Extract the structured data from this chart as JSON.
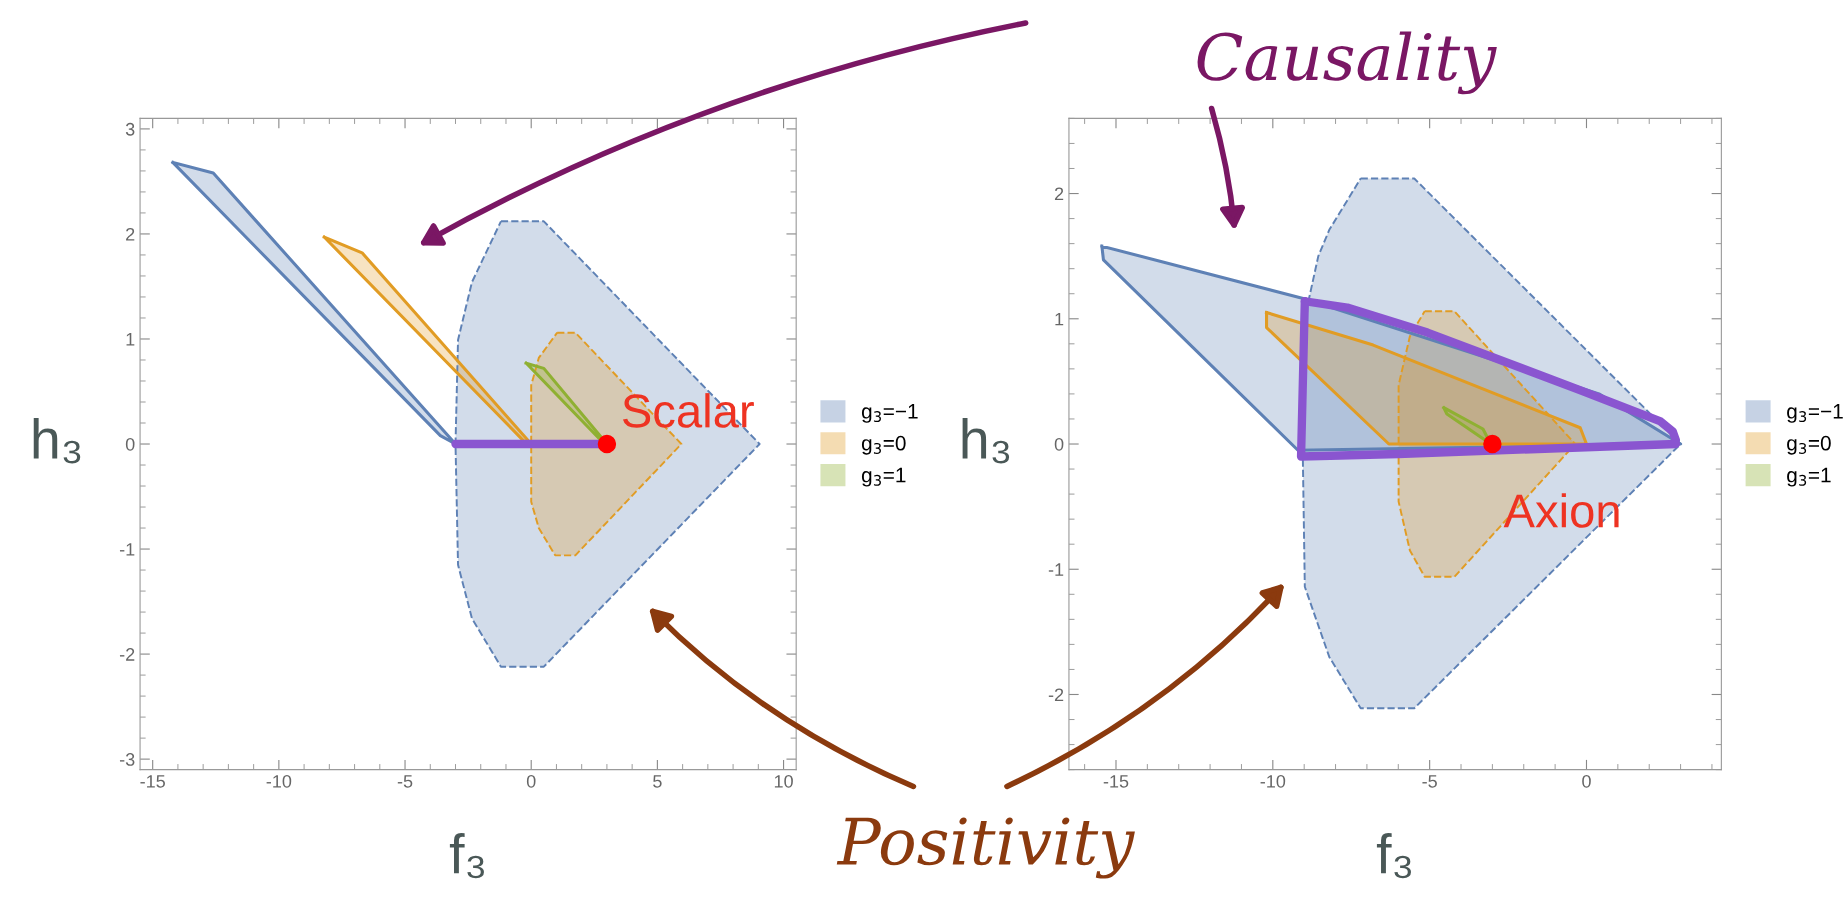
{
  "chart_data": [
    {
      "type": "area",
      "xlabel": "f₃",
      "ylabel": "h₃",
      "xlim": [
        -15.5,
        10.5
      ],
      "ylim": [
        -3.1,
        3.1
      ],
      "xticks": [
        -15,
        -10,
        -5,
        0,
        5,
        10
      ],
      "yticks": [
        -3,
        -2,
        -1,
        0,
        1,
        2,
        3
      ],
      "grid": false,
      "legend": "right",
      "annotations": [
        "Causality",
        {
          "text": "Scalar",
          "x": 3,
          "y": 0
        }
      ],
      "series": [
        {
          "line_style": "dashed",
          "color": "#5e81b5",
          "x": [
            -1.2,
            0.5,
            9.05,
            0.5,
            -1.2,
            -2.35,
            -2.9,
            -3,
            -2.9,
            -2.35
          ],
          "values": [
            2.12,
            2.12,
            0,
            -2.12,
            -2.12,
            -1.66,
            -1.15,
            0,
            0.99,
            1.54
          ]
        },
        {
          "line_style": "dashed",
          "color": "#e19c24",
          "x": [
            1.03,
            1.75,
            5.95,
            1.75,
            0.95,
            0.3,
            0,
            0,
            0.3
          ],
          "values": [
            1.06,
            1.06,
            0,
            -1.06,
            -1.06,
            -0.8,
            -0.55,
            0.56,
            0.82
          ]
        },
        {
          "line_style": "solid",
          "name": "g$_{3}$=−1",
          "color": "#5e81b5",
          "x": [
            -14.2,
            -12.6,
            -3,
            -3.6
          ],
          "values": [
            2.68,
            2.58,
            0,
            0.08
          ]
        },
        {
          "line_style": "solid",
          "name": "g$_{3}$=0",
          "color": "#e19c24",
          "x": [
            -8.2,
            -6.7,
            0,
            -0.3
          ],
          "values": [
            1.97,
            1.82,
            0,
            0.03
          ]
        },
        {
          "line_style": "solid",
          "name": "g$_{3}$=1",
          "color": "#8fb032",
          "x": [
            -0.2,
            0.5,
            3,
            2.7
          ],
          "values": [
            0.77,
            0.72,
            0,
            0.05
          ]
        },
        {
          "type": "line",
          "line_style": "solid",
          "color": "#8a55d0",
          "x": [
            -3,
            0,
            2.7
          ],
          "values": [
            0,
            0,
            0
          ]
        },
        {
          "type": "scatter",
          "marker": "circle",
          "color": "#ff0000",
          "x": [
            3
          ],
          "values": [
            0
          ]
        }
      ]
    },
    {
      "type": "area",
      "xlabel": "f₃",
      "ylabel": "h₃",
      "xlim": [
        -16.5,
        4.3
      ],
      "ylim": [
        -2.6,
        2.6
      ],
      "xticks": [
        -15,
        -10,
        -5,
        0
      ],
      "yticks": [
        -2,
        -1,
        0,
        1,
        2
      ],
      "grid": false,
      "legend": "right",
      "annotations": [
        "Positivity",
        {
          "text": "Axion",
          "x": -3,
          "y": 0
        }
      ],
      "series": [
        {
          "line_style": "dashed",
          "color": "#5e81b5",
          "x": [
            -7.2,
            -5.49,
            3,
            -5.49,
            -7.2,
            -8.2,
            -8.98,
            -9.05,
            -8.9,
            -8.55,
            -8.2
          ],
          "values": [
            2.12,
            2.12,
            0,
            -2.11,
            -2.11,
            -1.7,
            -1.14,
            0,
            1.1,
            1.5,
            1.71
          ]
        },
        {
          "line_style": "dashed",
          "color": "#e19c24",
          "x": [
            -5.16,
            -4.21,
            -0.36,
            -4.21,
            -5.16,
            -5.63,
            -5.99,
            -5.99,
            -5.63
          ],
          "values": [
            1.06,
            1.06,
            0,
            -1.06,
            -1.06,
            -0.85,
            -0.46,
            0.47,
            0.86
          ]
        },
        {
          "line_style": "solid",
          "name": "g$_{3}$=−1",
          "color": "#5e81b5",
          "x": [
            -15.45,
            -9,
            0.4,
            3,
            -9.2,
            -15.4
          ],
          "values": [
            1.58,
            1.16,
            0.4,
            0,
            -0.05,
            1.47
          ]
        },
        {
          "line_style": "solid",
          "name": "g$_{3}$=0",
          "color": "#e19c24",
          "x": [
            -10.2,
            -6.8,
            -0.2,
            0,
            -6.3,
            -10.2
          ],
          "values": [
            1.05,
            0.79,
            0.13,
            0,
            0,
            0.93
          ]
        },
        {
          "line_style": "solid",
          "name": "g$_{3}$=1",
          "color": "#8fb032",
          "x": [
            -4.55,
            -3.3,
            -3.05,
            -4.45
          ],
          "values": [
            0.29,
            0.12,
            0,
            0.24
          ]
        },
        {
          "type": "line",
          "line_style": "solid",
          "color": "#8a55d0",
          "x": [
            -8.98,
            -7.63,
            -5.07,
            -0.21,
            2.36,
            2.75,
            2.85
          ],
          "values": [
            1.14,
            1.09,
            0.89,
            0.43,
            0.18,
            0.1,
            0.03
          ]
        },
        {
          "type": "line",
          "line_style": "solid",
          "color": "#8a55d0",
          "x": [
            -8.98,
            -9.1,
            -6,
            2.85
          ],
          "values": [
            1.14,
            -0.1,
            -0.08,
            0
          ]
        },
        {
          "type": "scatter",
          "marker": "circle",
          "color": "#ff0000",
          "x": [
            -3
          ],
          "values": [
            0
          ]
        }
      ]
    }
  ]
}
